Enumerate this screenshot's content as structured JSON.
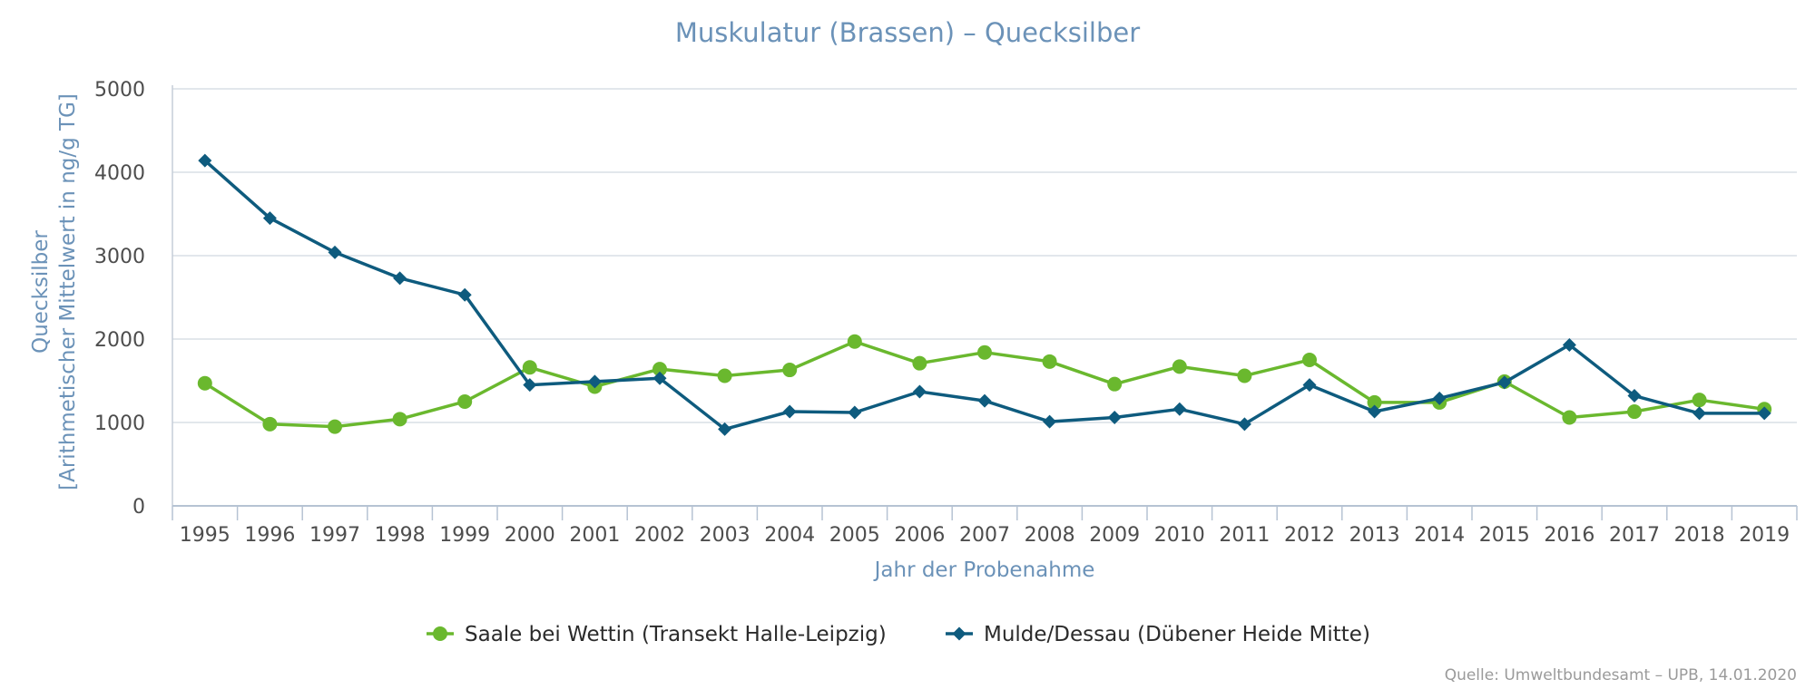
{
  "chart_data": {
    "type": "line",
    "title": "Muskulatur (Brassen) – Quecksilber",
    "xlabel": "Jahr der Probenahme",
    "ylabel_line1": "Quecksilber",
    "ylabel_line2": "[Arithmetischer Mittelwert in ng/g TG]",
    "ylim": [
      0,
      5000
    ],
    "yticks": [
      0,
      1000,
      2000,
      3000,
      4000,
      5000
    ],
    "grid": true,
    "legend_position": "bottom-center",
    "categories": [
      "1995",
      "1996",
      "1997",
      "1998",
      "1999",
      "2000",
      "2001",
      "2002",
      "2003",
      "2004",
      "2005",
      "2006",
      "2007",
      "2008",
      "2009",
      "2010",
      "2011",
      "2012",
      "2013",
      "2014",
      "2015",
      "2016",
      "2017",
      "2018",
      "2019"
    ],
    "series": [
      {
        "name": "Saale bei Wettin (Transekt Halle-Leipzig)",
        "color": "#6ab82e",
        "marker": "circle",
        "values": [
          1470,
          980,
          950,
          1040,
          1250,
          1660,
          1430,
          1640,
          1560,
          1630,
          1970,
          1710,
          1840,
          1730,
          1460,
          1670,
          1560,
          1750,
          1240,
          1240,
          1490,
          1060,
          1130,
          1270,
          1160
        ]
      },
      {
        "name": "Mulde/Dessau (Dübener Heide Mitte)",
        "color": "#0e5b7e",
        "marker": "diamond",
        "values": [
          4140,
          3450,
          3040,
          2730,
          2530,
          1450,
          1490,
          1530,
          920,
          1130,
          1120,
          1370,
          1260,
          1010,
          1060,
          1160,
          980,
          1450,
          1130,
          1290,
          1480,
          1930,
          1320,
          1110,
          1110
        ]
      }
    ],
    "credit": "Quelle: Umweltbundesamt – UPB, 14.01.2020"
  }
}
